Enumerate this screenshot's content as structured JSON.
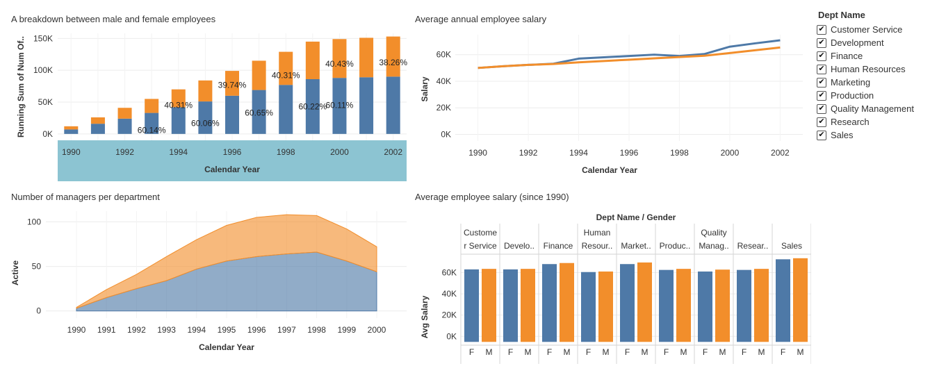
{
  "titles": {
    "gender_breakdown": "A breakdown between male and female employees",
    "avg_salary": "Average annual employee salary",
    "managers": "Number of  managers per department",
    "dept_salary": "Average employee salary (since 1990)"
  },
  "legend": {
    "title": "Dept Name",
    "items": [
      "Customer Service",
      "Development",
      "Finance",
      "Human Resources",
      "Marketing",
      "Production",
      "Quality Management",
      "Research",
      "Sales"
    ],
    "check_glyph": "✔"
  },
  "colors": {
    "blue": "#4e79a7",
    "orange": "#f28e2b",
    "header_band": "#8cc4d2"
  },
  "chart_data": [
    {
      "id": "gender_breakdown",
      "type": "bar",
      "stacked": true,
      "title": "A breakdown between male and female employees",
      "xlabel": "Calendar Year",
      "ylabel": "Running Sum of Num Of..",
      "categories": [
        1990,
        1991,
        1992,
        1993,
        1994,
        1995,
        1996,
        1997,
        1998,
        1999,
        2000,
        2001,
        2002
      ],
      "x_ticks": [
        "1990",
        "1992",
        "1994",
        "1996",
        "1998",
        "2000",
        "2002"
      ],
      "y_ticks": [
        {
          "v": 0,
          "label": "0K"
        },
        {
          "v": 50000,
          "label": "50K"
        },
        {
          "v": 100000,
          "label": "100K"
        },
        {
          "v": 150000,
          "label": "150K"
        }
      ],
      "ylim": [
        -10000,
        158000
      ],
      "series": [
        {
          "name": "F",
          "color": "#4e79a7",
          "values": [
            7000,
            16000,
            24000,
            33000,
            42000,
            51000,
            60000,
            69000,
            77000,
            86000,
            88000,
            89000,
            90000
          ]
        },
        {
          "name": "M",
          "color": "#f28e2b",
          "values": [
            5000,
            10000,
            17000,
            22000,
            28000,
            33000,
            39000,
            46000,
            52000,
            59000,
            61000,
            62000,
            63000
          ]
        }
      ],
      "data_labels": [
        {
          "x": 1993,
          "y": 6000,
          "text": "60.14%"
        },
        {
          "x": 1994,
          "y": 45000,
          "text": "40.31%"
        },
        {
          "x": 1995,
          "y": 17000,
          "text": "60.06%"
        },
        {
          "x": 1996,
          "y": 77000,
          "text": "39.74%"
        },
        {
          "x": 1997,
          "y": 33000,
          "text": "60.65%"
        },
        {
          "x": 1998,
          "y": 92000,
          "text": "40.31%"
        },
        {
          "x": 1999,
          "y": 43000,
          "text": "60.22%"
        },
        {
          "x": 2000,
          "y": 110000,
          "text": "40.43%"
        },
        {
          "x": 2000,
          "y": 45000,
          "text": "60.11%"
        },
        {
          "x": 2002,
          "y": 112000,
          "text": "38.26%"
        }
      ]
    },
    {
      "id": "avg_salary",
      "type": "line",
      "title": "Average annual employee salary",
      "xlabel": "Calendar Year",
      "ylabel": "Salary",
      "x": [
        1990,
        1991,
        1992,
        1993,
        1994,
        1995,
        1996,
        1997,
        1998,
        1999,
        2000,
        2001,
        2002
      ],
      "xlim": [
        1989.1,
        2002.9
      ],
      "x_ticks": [
        "1990",
        "1992",
        "1994",
        "1996",
        "1998",
        "2000",
        "2002"
      ],
      "y_ticks": [
        {
          "v": 0,
          "label": "0K"
        },
        {
          "v": 20000,
          "label": "20K"
        },
        {
          "v": 40000,
          "label": "40K"
        },
        {
          "v": 60000,
          "label": "60K"
        }
      ],
      "ylim": [
        -5000,
        75000
      ],
      "series": [
        {
          "name": "F",
          "color": "#4e79a7",
          "values": [
            50000,
            51300,
            52300,
            53200,
            57000,
            58000,
            59000,
            60000,
            59000,
            60500,
            66000,
            68500,
            70800
          ]
        },
        {
          "name": "M",
          "color": "#f28e2b",
          "values": [
            50000,
            51300,
            52300,
            53000,
            54200,
            55200,
            56200,
            57200,
            58200,
            59200,
            61200,
            63300,
            65400
          ]
        }
      ]
    },
    {
      "id": "managers",
      "type": "area",
      "stacked": true,
      "title": "Number of  managers per department",
      "xlabel": "Calendar Year",
      "ylabel": "Active",
      "categories": [
        1990,
        1991,
        1992,
        1993,
        1994,
        1995,
        1996,
        1997,
        1998,
        1999,
        2000
      ],
      "y_ticks": [
        {
          "v": 0,
          "label": "0"
        },
        {
          "v": 50,
          "label": "50"
        },
        {
          "v": 100,
          "label": "100"
        }
      ],
      "ylim": [
        -8,
        112
      ],
      "series": [
        {
          "name": "F",
          "color": "#4e79a7",
          "values": [
            3,
            15,
            25,
            34,
            47,
            56,
            61,
            64,
            66,
            56,
            44
          ]
        },
        {
          "name": "M",
          "color": "#f28e2b",
          "values": [
            1,
            9,
            16,
            27,
            33,
            40,
            44,
            44,
            41,
            36,
            28
          ]
        }
      ]
    },
    {
      "id": "dept_salary",
      "type": "bar",
      "title": "Average employee salary (since 1990)",
      "header": "Dept Name  /  Gender",
      "ylabel": "Avg Salary",
      "departments": [
        {
          "label": [
            "Custome",
            "r Service"
          ],
          "F": 63000,
          "M": 63500
        },
        {
          "label": [
            "Develo.."
          ],
          "F": 63000,
          "M": 63500
        },
        {
          "label": [
            "Finance"
          ],
          "F": 68000,
          "M": 69000
        },
        {
          "label": [
            "Human",
            "Resour.."
          ],
          "F": 60500,
          "M": 61000
        },
        {
          "label": [
            "Market.."
          ],
          "F": 68000,
          "M": 69500
        },
        {
          "label": [
            "Produc.."
          ],
          "F": 62500,
          "M": 63500
        },
        {
          "label": [
            "Quality",
            "Manag.."
          ],
          "F": 61000,
          "M": 62800
        },
        {
          "label": [
            "Resear.."
          ],
          "F": 62500,
          "M": 63500
        },
        {
          "label": [
            "Sales"
          ],
          "F": 72500,
          "M": 73500
        }
      ],
      "gender_labels": [
        "F",
        "M"
      ],
      "y_ticks": [
        {
          "v": 0,
          "label": "0K"
        },
        {
          "v": 20000,
          "label": "20K"
        },
        {
          "v": 40000,
          "label": "40K"
        },
        {
          "v": 60000,
          "label": "60K"
        }
      ],
      "ylim": [
        -7000,
        76000
      ]
    }
  ]
}
